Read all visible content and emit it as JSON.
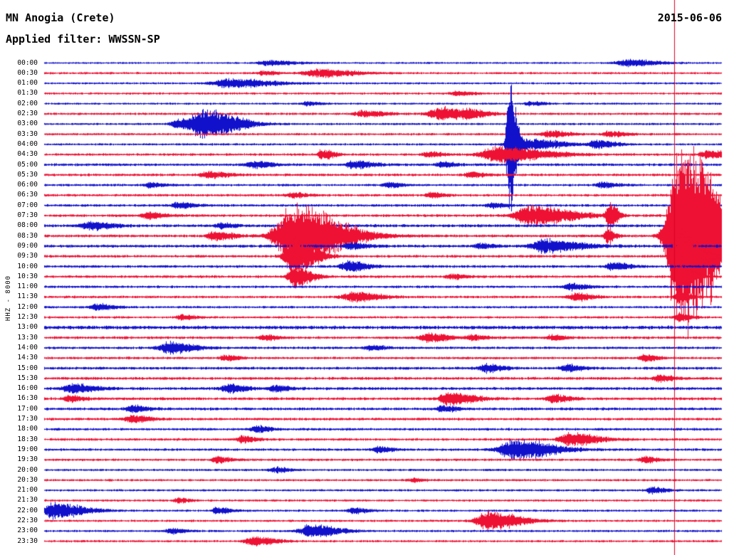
{
  "header": {
    "station": "MN Anogia (Crete)",
    "date": "2015-06-06",
    "filter": "Applied filter: WWSSN-SP"
  },
  "axis": {
    "channel_label": "HHZ - 8000"
  },
  "chart_data": {
    "type": "line",
    "title": "MN Anogia (Crete)",
    "subtitle": "Applied filter: WWSSN-SP",
    "date": "2015-06-06",
    "channel": "HHZ",
    "gain": "8000",
    "row_interval_minutes": 30,
    "x_range_minutes": 30,
    "legend": "none",
    "grid": false,
    "colors": {
      "b": "#1111cc",
      "r": "#ee1133",
      "artifact": "#e00022"
    },
    "artifact_line_x_frac": 0.9296,
    "rows": [
      {
        "t": "00:00",
        "c": "b",
        "n": 1.3,
        "e": [
          [
            0.329,
            4,
            18
          ],
          [
            0.859,
            5,
            22
          ]
        ]
      },
      {
        "t": "00:30",
        "c": "r",
        "n": 1.5,
        "e": [
          [
            0.402,
            6,
            26
          ],
          [
            0.323,
            3,
            10
          ]
        ]
      },
      {
        "t": "01:00",
        "c": "b",
        "n": 1.4,
        "e": [
          [
            0.271,
            7,
            30
          ]
        ]
      },
      {
        "t": "01:30",
        "c": "r",
        "n": 1.5,
        "e": [
          [
            0.607,
            3,
            12
          ]
        ]
      },
      {
        "t": "02:00",
        "c": "b",
        "n": 1.4,
        "e": [
          [
            0.387,
            3,
            10
          ],
          [
            0.717,
            3,
            10
          ]
        ]
      },
      {
        "t": "02:30",
        "c": "r",
        "n": 1.6,
        "e": [
          [
            0.47,
            5,
            16
          ],
          [
            0.584,
            10,
            22
          ],
          [
            0.628,
            4,
            12
          ]
        ]
      },
      {
        "t": "03:00",
        "c": "b",
        "n": 1.5,
        "e": [
          [
            0.236,
            22,
            24
          ],
          [
            0.197,
            8,
            14
          ]
        ]
      },
      {
        "t": "03:30",
        "c": "r",
        "n": 1.6,
        "e": [
          [
            0.744,
            5,
            14
          ],
          [
            0.833,
            4,
            12
          ]
        ]
      },
      {
        "t": "04:00",
        "c": "b",
        "n": 1.5,
        "e": [
          [
            0.685,
            115,
            5
          ],
          [
            0.707,
            9,
            26
          ],
          [
            0.815,
            6,
            14
          ]
        ]
      },
      {
        "t": "04:30",
        "c": "r",
        "n": 1.7,
        "e": [
          [
            0.67,
            12,
            34
          ],
          [
            0.41,
            8,
            8
          ],
          [
            0.565,
            4,
            10
          ],
          [
            0.98,
            6,
            14
          ]
        ]
      },
      {
        "t": "05:00",
        "c": "b",
        "n": 1.8,
        "e": [
          [
            0.308,
            5,
            14
          ],
          [
            0.457,
            6,
            14
          ],
          [
            0.586,
            4,
            10
          ]
        ]
      },
      {
        "t": "05:30",
        "c": "r",
        "n": 1.8,
        "e": [
          [
            0.242,
            5,
            14
          ],
          [
            0.628,
            4,
            10
          ]
        ]
      },
      {
        "t": "06:00",
        "c": "b",
        "n": 1.6,
        "e": [
          [
            0.155,
            4,
            10
          ],
          [
            0.507,
            4,
            10
          ],
          [
            0.822,
            4,
            12
          ]
        ]
      },
      {
        "t": "06:30",
        "c": "r",
        "n": 1.7,
        "e": [
          [
            0.366,
            4,
            10
          ],
          [
            0.57,
            4,
            10
          ]
        ]
      },
      {
        "t": "07:00",
        "c": "b",
        "n": 1.7,
        "e": [
          [
            0.197,
            5,
            12
          ],
          [
            0.66,
            4,
            10
          ]
        ]
      },
      {
        "t": "07:30",
        "c": "r",
        "n": 1.8,
        "e": [
          [
            0.717,
            15,
            30
          ],
          [
            0.153,
            5,
            12
          ],
          [
            0.833,
            20,
            6
          ]
        ]
      },
      {
        "t": "08:00",
        "c": "b",
        "n": 2.0,
        "e": [
          [
            0.066,
            6,
            16
          ],
          [
            0.26,
            4,
            10
          ]
        ]
      },
      {
        "t": "08:30",
        "c": "r",
        "n": 1.9,
        "e": [
          [
            0.368,
            50,
            34
          ],
          [
            0.25,
            7,
            14
          ],
          [
            0.936,
            160,
            22
          ],
          [
            0.975,
            40,
            30
          ],
          [
            0.83,
            14,
            5
          ]
        ]
      },
      {
        "t": "09:00",
        "c": "b",
        "n": 2.0,
        "e": [
          [
            0.738,
            10,
            26
          ],
          [
            0.45,
            5,
            12
          ],
          [
            0.641,
            4,
            10
          ]
        ]
      },
      {
        "t": "09:30",
        "c": "r",
        "n": 1.8,
        "e": [
          [
            0.366,
            28,
            16
          ],
          [
            0.936,
            40,
            14
          ]
        ]
      },
      {
        "t": "10:00",
        "c": "b",
        "n": 1.8,
        "e": [
          [
            0.447,
            8,
            14
          ],
          [
            0.838,
            6,
            12
          ]
        ]
      },
      {
        "t": "10:30",
        "c": "r",
        "n": 1.8,
        "e": [
          [
            0.368,
            16,
            12
          ],
          [
            0.936,
            22,
            10
          ],
          [
            0.599,
            4,
            10
          ]
        ]
      },
      {
        "t": "11:00",
        "c": "b",
        "n": 1.7,
        "e": [
          [
            0.775,
            5,
            12
          ]
        ]
      },
      {
        "t": "11:30",
        "c": "r",
        "n": 1.7,
        "e": [
          [
            0.455,
            7,
            20
          ],
          [
            0.783,
            6,
            12
          ],
          [
            0.936,
            10,
            8
          ]
        ]
      },
      {
        "t": "12:00",
        "c": "b",
        "n": 1.6,
        "e": [
          [
            0.077,
            5,
            12
          ]
        ]
      },
      {
        "t": "12:30",
        "c": "r",
        "n": 1.6,
        "e": [
          [
            0.203,
            4,
            10
          ],
          [
            0.936,
            7,
            8
          ]
        ]
      },
      {
        "t": "13:00",
        "c": "b",
        "n": 2.4,
        "e": []
      },
      {
        "t": "13:30",
        "c": "r",
        "n": 1.8,
        "e": [
          [
            0.565,
            7,
            14
          ],
          [
            0.324,
            4,
            10
          ],
          [
            0.63,
            4,
            10
          ],
          [
            0.749,
            4,
            10
          ]
        ]
      },
      {
        "t": "14:00",
        "c": "b",
        "n": 1.8,
        "e": [
          [
            0.182,
            9,
            18
          ],
          [
            0.481,
            4,
            10
          ]
        ]
      },
      {
        "t": "14:30",
        "c": "r",
        "n": 1.7,
        "e": [
          [
            0.266,
            4,
            10
          ],
          [
            0.885,
            5,
            10
          ]
        ]
      },
      {
        "t": "15:00",
        "c": "b",
        "n": 1.9,
        "e": [
          [
            0.651,
            6,
            12
          ],
          [
            0.77,
            5,
            12
          ]
        ]
      },
      {
        "t": "15:30",
        "c": "r",
        "n": 1.9,
        "e": [
          [
            0.906,
            5,
            10
          ]
        ]
      },
      {
        "t": "16:00",
        "c": "b",
        "n": 2.0,
        "e": [
          [
            0.04,
            7,
            16
          ],
          [
            0.271,
            6,
            12
          ],
          [
            0.339,
            5,
            10
          ]
        ]
      },
      {
        "t": "16:30",
        "c": "r",
        "n": 1.9,
        "e": [
          [
            0.597,
            10,
            18
          ],
          [
            0.035,
            5,
            10
          ],
          [
            0.749,
            6,
            12
          ]
        ]
      },
      {
        "t": "17:00",
        "c": "b",
        "n": 1.9,
        "e": [
          [
            0.129,
            5,
            12
          ],
          [
            0.586,
            5,
            10
          ]
        ]
      },
      {
        "t": "17:30",
        "c": "r",
        "n": 1.8,
        "e": [
          [
            0.129,
            6,
            12
          ]
        ]
      },
      {
        "t": "18:00",
        "c": "b",
        "n": 1.7,
        "e": [
          [
            0.313,
            5,
            10
          ]
        ]
      },
      {
        "t": "18:30",
        "c": "r",
        "n": 1.7,
        "e": [
          [
            0.292,
            5,
            10
          ],
          [
            0.775,
            10,
            20
          ]
        ]
      },
      {
        "t": "19:00",
        "c": "b",
        "n": 1.7,
        "e": [
          [
            0.693,
            16,
            28
          ],
          [
            0.492,
            5,
            10
          ]
        ]
      },
      {
        "t": "19:30",
        "c": "r",
        "n": 1.6,
        "e": [
          [
            0.255,
            5,
            10
          ],
          [
            0.885,
            5,
            10
          ]
        ]
      },
      {
        "t": "20:00",
        "c": "b",
        "n": 1.5,
        "e": [
          [
            0.339,
            4,
            10
          ]
        ]
      },
      {
        "t": "20:30",
        "c": "r",
        "n": 1.5,
        "e": [
          [
            0.544,
            3,
            8
          ]
        ]
      },
      {
        "t": "21:00",
        "c": "b",
        "n": 1.5,
        "e": [
          [
            0.896,
            5,
            10
          ]
        ]
      },
      {
        "t": "21:30",
        "c": "r",
        "n": 1.5,
        "e": [
          [
            0.197,
            4,
            8
          ]
        ]
      },
      {
        "t": "22:00",
        "c": "b",
        "n": 1.5,
        "e": [
          [
            0.014,
            12,
            22
          ],
          [
            0.255,
            5,
            10
          ],
          [
            0.455,
            5,
            10
          ]
        ]
      },
      {
        "t": "22:30",
        "c": "r",
        "n": 1.5,
        "e": [
          [
            0.654,
            14,
            24
          ]
        ]
      },
      {
        "t": "23:00",
        "c": "b",
        "n": 1.5,
        "e": [
          [
            0.392,
            10,
            20
          ],
          [
            0.187,
            4,
            10
          ]
        ]
      },
      {
        "t": "23:30",
        "c": "r",
        "n": 1.5,
        "e": [
          [
            0.308,
            7,
            16
          ]
        ]
      }
    ]
  }
}
